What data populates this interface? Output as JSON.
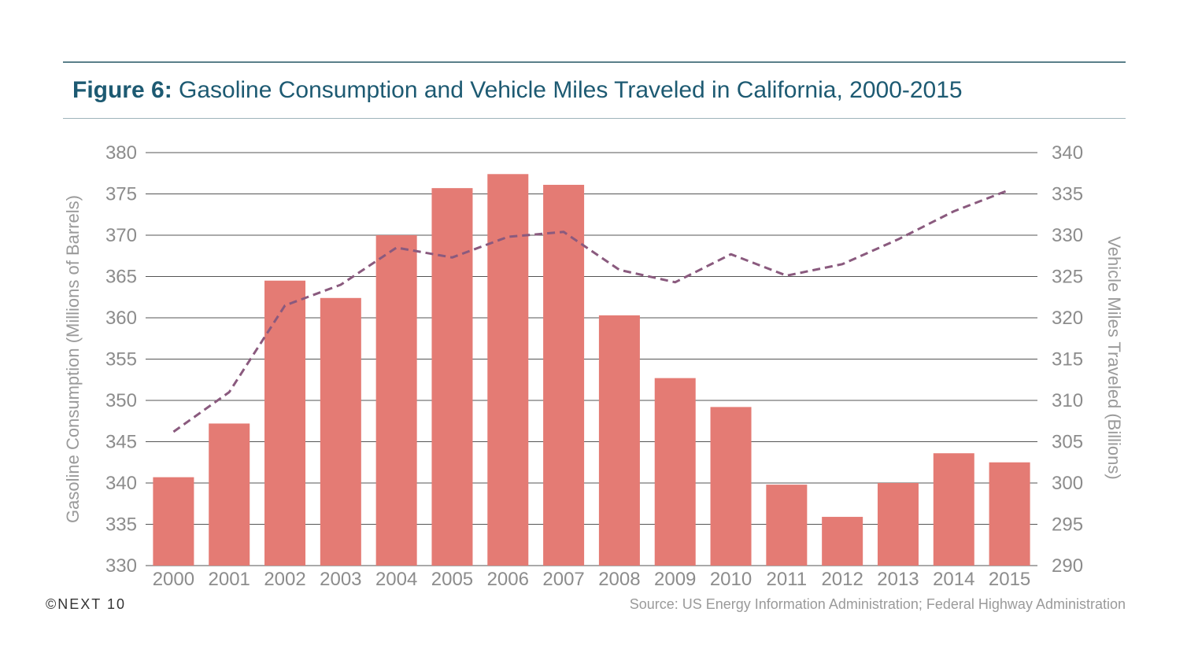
{
  "header": {
    "title_prefix": "Figure 6:",
    "title_text": " Gasoline Consumption and Vehicle Miles Traveled in California, 2000-2015"
  },
  "footer": {
    "logo": "©NEXT 10",
    "source": "Source: US Energy Information Administration; Federal Highway Administration"
  },
  "colors": {
    "bar": "#e47b74",
    "line": "#8a5a7e",
    "grid": "#555555",
    "title": "#1d5a72"
  },
  "chart_data": {
    "type": "bar",
    "categories": [
      "2000",
      "2001",
      "2002",
      "2003",
      "2004",
      "2005",
      "2006",
      "2007",
      "2008",
      "2009",
      "2010",
      "2011",
      "2012",
      "2013",
      "2014",
      "2015"
    ],
    "series": [
      {
        "type": "bar",
        "axis": "left",
        "values": [
          340.7,
          347.2,
          364.5,
          362.4,
          370.0,
          375.7,
          377.4,
          376.1,
          360.3,
          352.7,
          349.2,
          339.8,
          335.9,
          340.0,
          343.6,
          342.5
        ]
      },
      {
        "type": "line",
        "style": "dashed",
        "axis": "right",
        "values": [
          306.2,
          311.0,
          321.5,
          324.0,
          328.5,
          327.3,
          329.8,
          330.4,
          325.8,
          324.3,
          327.7,
          325.1,
          326.5,
          329.5,
          332.9,
          335.5
        ]
      }
    ],
    "y_left": {
      "label": "Gasoline Consumption (Millions of Barrels)",
      "lim": [
        330,
        380
      ],
      "ticks": [
        330,
        335,
        340,
        345,
        350,
        355,
        360,
        365,
        370,
        375,
        380
      ]
    },
    "y_right": {
      "label": "Vehicle Miles Traveled (Billions)",
      "lim": [
        290,
        340
      ],
      "ticks": [
        290,
        295,
        300,
        305,
        310,
        315,
        320,
        325,
        330,
        335,
        340
      ]
    },
    "grid": true,
    "legend": "none"
  }
}
